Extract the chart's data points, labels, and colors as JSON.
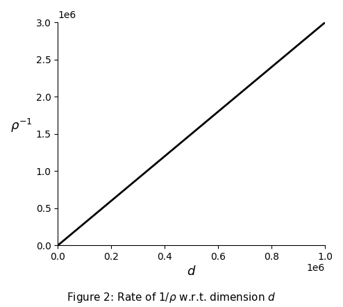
{
  "x_min": 0,
  "x_max": 1000000,
  "y_min": 0,
  "y_max": 3000000,
  "xlabel": "$d$",
  "ylabel": "$\\rho^{-1}$",
  "caption": "Figure 2: Rate of $1/\\rho$ w.r.t. dimension $d$",
  "line_color": "#000000",
  "line_width": 2.0,
  "x_ticks": [
    0.0,
    0.2,
    0.4,
    0.6,
    0.8,
    1.0
  ],
  "y_ticks": [
    0.0,
    0.5,
    1.0,
    1.5,
    2.0,
    2.5,
    3.0
  ],
  "x_scale": 1000000.0,
  "y_scale": 1000000.0,
  "figsize": [
    4.94,
    4.42
  ],
  "dpi": 100
}
